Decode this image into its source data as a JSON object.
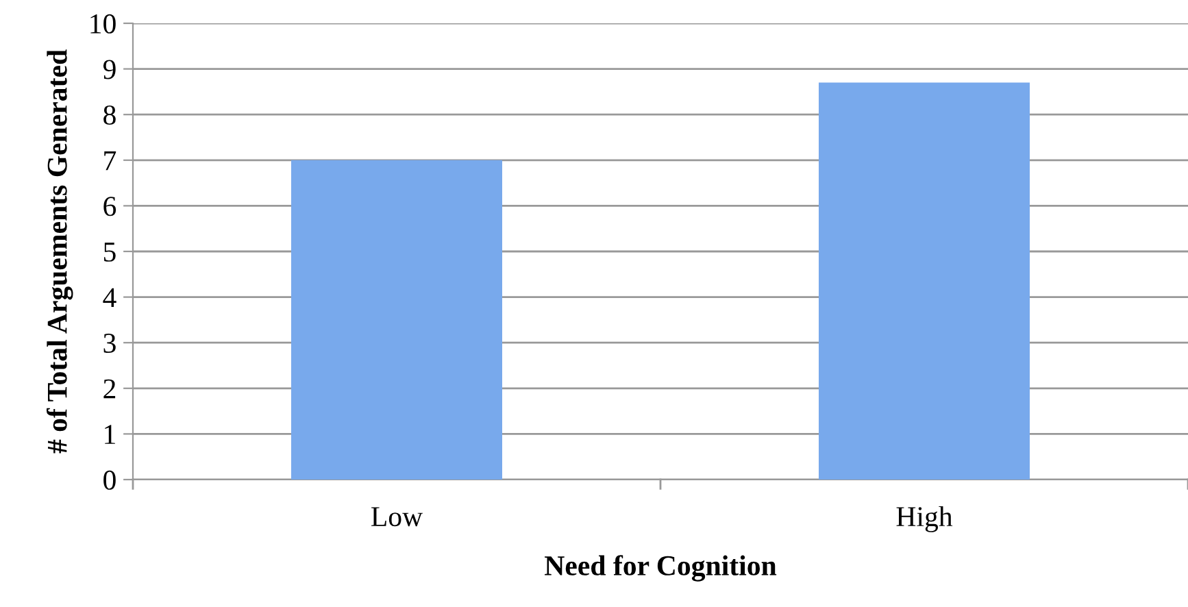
{
  "chart_data": {
    "type": "bar",
    "xlabel": "Need for Cognition",
    "ylabel": "# of Total Arguements Generated",
    "categories": [
      "Low",
      "High"
    ],
    "values": [
      7.0,
      8.7
    ],
    "color": "#78a9ec",
    "ylim": [
      0,
      10
    ],
    "yticks": [
      0,
      1,
      2,
      3,
      4,
      5,
      6,
      7,
      8,
      9,
      10
    ],
    "grid": "y",
    "legend": false
  }
}
